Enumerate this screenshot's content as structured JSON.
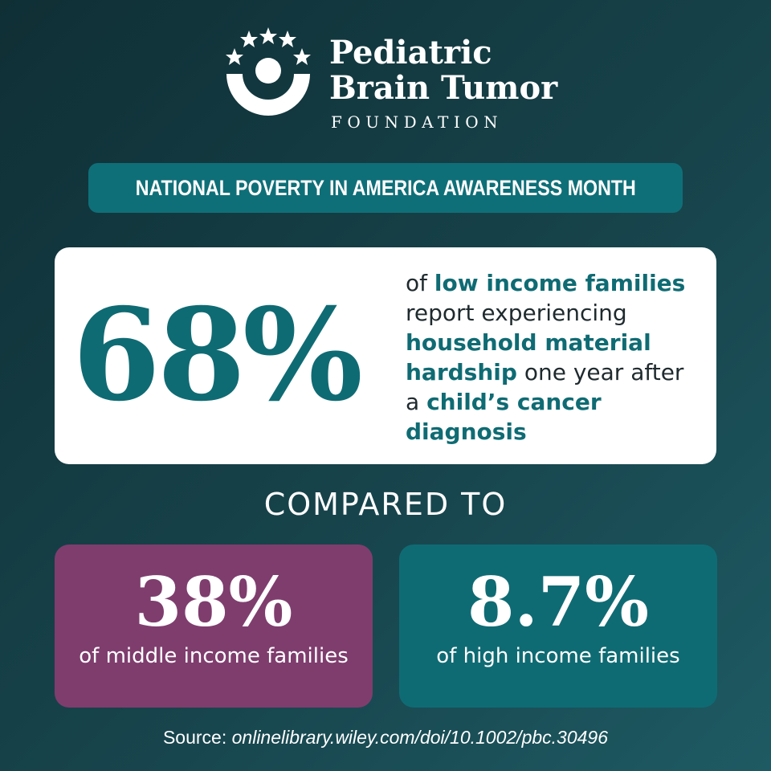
{
  "logo": {
    "line1": "Pediatric",
    "line2": "Brain Tumor",
    "line3": "FOUNDATION"
  },
  "banner": "NATIONAL POVERTY IN AMERICA AWARENESS MONTH",
  "main_stat": {
    "value": "68%",
    "description": [
      {
        "text": "of ",
        "emphasis": false
      },
      {
        "text": "low income families",
        "emphasis": true
      },
      {
        "text": " report experiencing ",
        "emphasis": false
      },
      {
        "text": "household material hardship",
        "emphasis": true
      },
      {
        "text": " one year after a ",
        "emphasis": false
      },
      {
        "text": "child’s cancer diagnosis",
        "emphasis": true
      }
    ]
  },
  "comparison_heading": "COMPARED TO",
  "comparisons": [
    {
      "value": "38%",
      "label": "of middle income families"
    },
    {
      "value": "8.7%",
      "label": "of high income families"
    }
  ],
  "source": {
    "prefix": "Source: ",
    "link": "onlinelibrary.wiley.com/doi/10.1002/pbc.30496"
  }
}
